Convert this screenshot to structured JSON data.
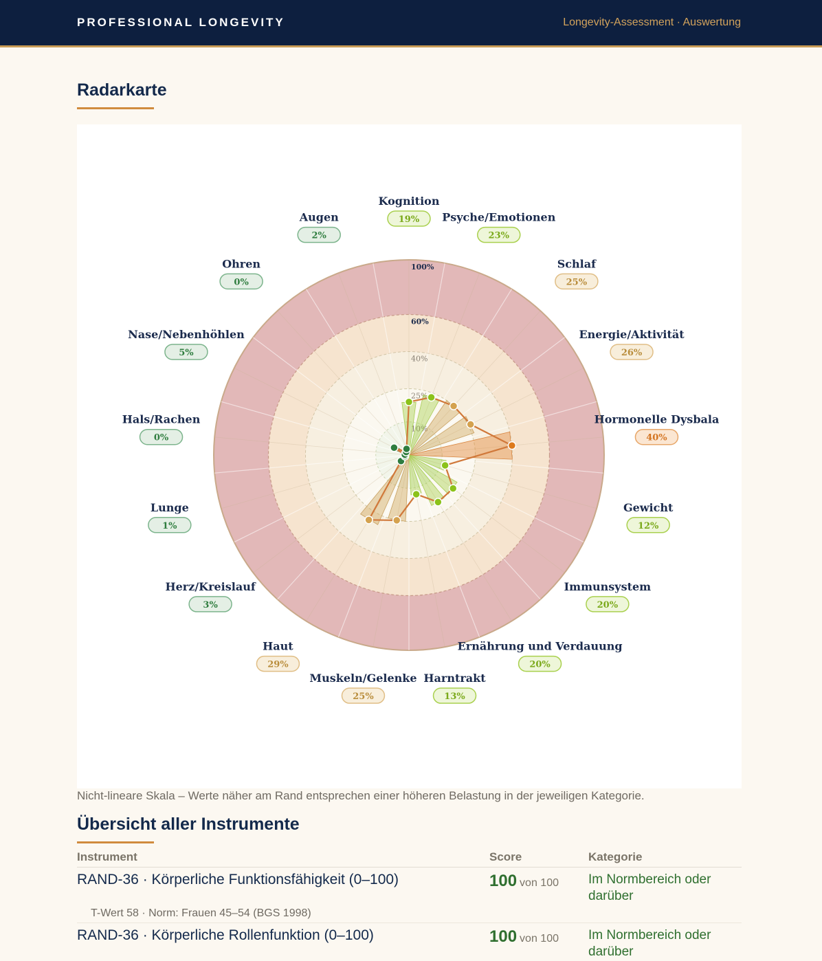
{
  "header": {
    "brand": "PROFESSIONAL LONGEVITY",
    "subtitle": "Longevity-Assessment · Auswertung"
  },
  "radar": {
    "heading": "Radarkarte",
    "note": "Nicht-lineare Skala – Werte näher am Rand entsprechen einer höheren Belastung in der jeweiligen Kategorie.",
    "ring_labels": [
      "10%",
      "25%",
      "40%",
      "60%",
      "100%"
    ],
    "colors": {
      "outer_band": "#e2b8b8",
      "mid_band": "#f6e4cf",
      "inner_band": "#f7efe0",
      "center": "#fbf8f0",
      "green_dot": "#2f7d3f",
      "lime_dot": "#8bc21a",
      "tan_dot": "#d4a24f",
      "orange_dot": "#dd7a1c",
      "line": "#d0783a"
    }
  },
  "chart_data": {
    "type": "radar",
    "scale": "non-linear",
    "ring_ticks": [
      "10%",
      "25%",
      "40%",
      "60%",
      "100%"
    ],
    "categories": [
      "Kognition",
      "Psyche/Emotionen",
      "Schlaf",
      "Energie/Aktivität",
      "Hormonelle Dysbala",
      "Gewicht",
      "Immunsystem",
      "Ernährung und Verdauung",
      "Harntrakt",
      "Muskeln/Gelenke",
      "Haut",
      "Herz/Kreislauf",
      "Lunge",
      "Hals/Rachen",
      "Nase/Nebenhöhlen",
      "Ohren",
      "Augen"
    ],
    "values": [
      19,
      23,
      25,
      26,
      40,
      12,
      20,
      20,
      13,
      25,
      29,
      3,
      1,
      0,
      5,
      0,
      2
    ],
    "value_labels": [
      "19%",
      "23%",
      "25%",
      "26%",
      "40%",
      "12%",
      "20%",
      "20%",
      "13%",
      "25%",
      "29%",
      "3%",
      "1%",
      "0%",
      "5%",
      "0%",
      "2%"
    ],
    "badge_tone": [
      "lime",
      "lime",
      "tan",
      "tan",
      "orange",
      "lime",
      "lime",
      "lime",
      "lime",
      "tan",
      "tan",
      "green",
      "green",
      "green",
      "green",
      "green",
      "green"
    ]
  },
  "overview": {
    "heading": "Übersicht aller Instrumente",
    "columns": [
      "Instrument",
      "Score",
      "Kategorie"
    ],
    "rows": [
      {
        "name": "RAND-36 · Körperliche Funktionsfähigkeit (0–100)",
        "score": "100",
        "of": "von 100",
        "category": "Im Normbereich oder darüber",
        "meta": "T-Wert 58 · Norm: Frauen 45–54 (BGS 1998)"
      },
      {
        "name": "RAND-36 · Körperliche Rollenfunktion (0–100)",
        "score": "100",
        "of": "von 100",
        "category": "Im Normbereich oder darüber",
        "meta": ""
      }
    ]
  }
}
